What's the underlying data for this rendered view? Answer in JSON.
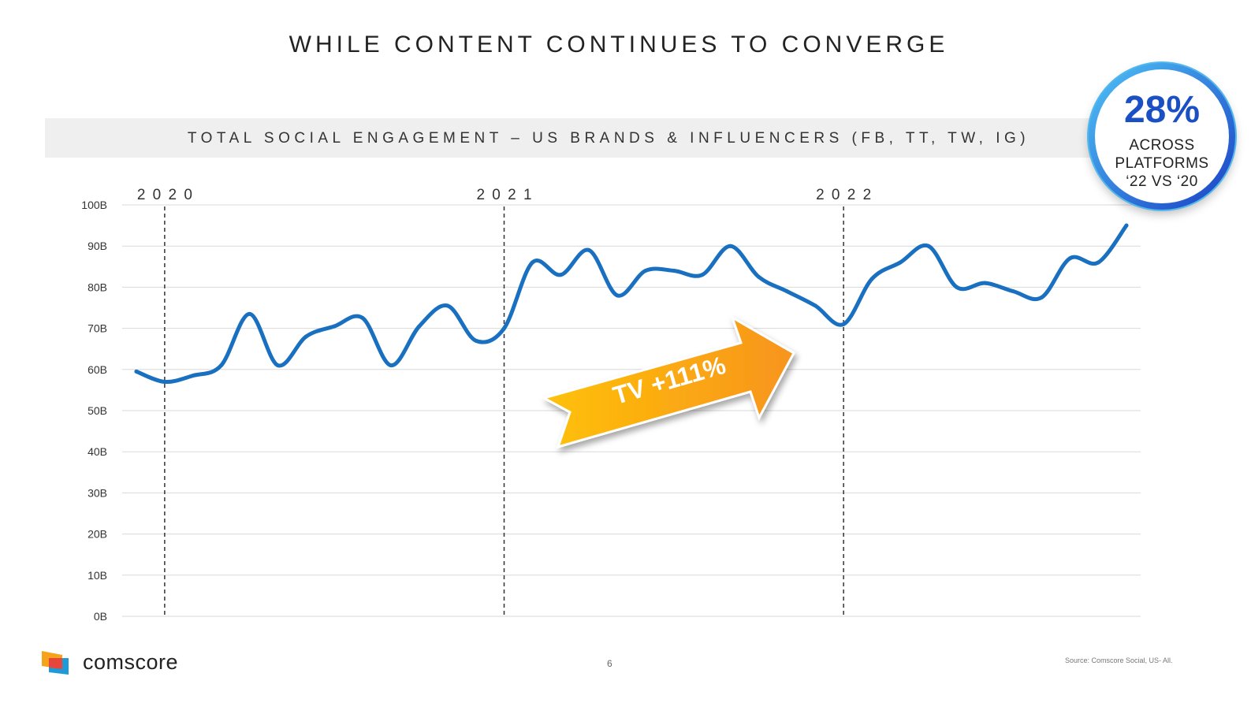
{
  "slide": {
    "title": "WHILE CONTENT CONTINUES TO CONVERGE",
    "page_number": "6",
    "source": "Source: Comscore  Social, US- All."
  },
  "logo": {
    "text": "comscore"
  },
  "badge": {
    "percent": "28%",
    "line1": "ACROSS",
    "line2": "PLATFORMS",
    "line3": "‘22 VS ‘20"
  },
  "arrow": {
    "label": "TV +111%",
    "color_start": "#ffc107",
    "color_end": "#f7941d"
  },
  "chart_data": {
    "type": "line",
    "title": "TOTAL SOCIAL ENGAGEMENT – US BRANDS & INFLUENCERS (FB, TT, TW, IG)",
    "xlabel": "",
    "ylabel": "",
    "ylim": [
      0,
      100
    ],
    "y_tick_labels": [
      "0B",
      "10B",
      "20B",
      "30B",
      "40B",
      "50B",
      "60B",
      "70B",
      "80B",
      "90B",
      "100B"
    ],
    "year_markers": [
      {
        "label": "2 0 2 0",
        "index": 1
      },
      {
        "label": "2 0 2 1",
        "index": 13
      },
      {
        "label": "2 0 2 2",
        "index": 25
      }
    ],
    "line_color": "#1a70c0",
    "series": [
      {
        "name": "Total Social Engagement (B)",
        "values": [
          59.5,
          57,
          58.5,
          61,
          73.5,
          61,
          68,
          70.5,
          72.5,
          61,
          70.5,
          75.5,
          67,
          70,
          86,
          83,
          89,
          78,
          84,
          84,
          83,
          90,
          82.5,
          79,
          75.5,
          71,
          82,
          86,
          90,
          80,
          81,
          79,
          77.5,
          87,
          86,
          95
        ]
      }
    ]
  }
}
